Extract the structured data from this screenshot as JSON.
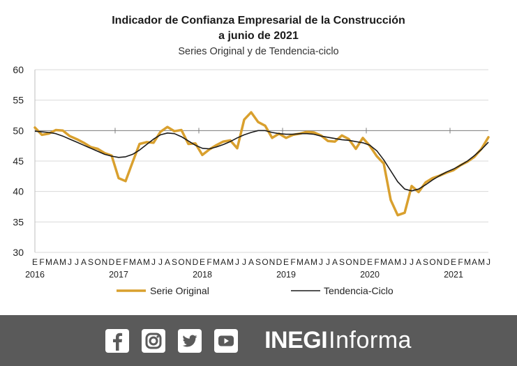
{
  "colors": {
    "original": "#d9a02e",
    "trend": "#1a1a1a",
    "grid": "#d9d9d9",
    "footer_bg": "#5a5a5a"
  },
  "chart_data": {
    "type": "line",
    "title_line1": "Indicador de Confianza Empresarial de la Construcción",
    "title_line2": "a junio de 2021",
    "subtitle": "Series Original y de Tendencia-ciclo",
    "ylim": [
      30,
      60
    ],
    "yticks": [
      "30",
      "35",
      "40",
      "45",
      "50",
      "55",
      "60"
    ],
    "reference_line": 50,
    "grid": "horizontal",
    "legend_position": "bottom",
    "month_letters": [
      "E",
      "F",
      "M",
      "A",
      "M",
      "J",
      "J",
      "A",
      "S",
      "O",
      "N",
      "D"
    ],
    "years": [
      "2016",
      "2017",
      "2018",
      "2019",
      "2020",
      "2021"
    ],
    "x": [
      "2016-01",
      "2016-02",
      "2016-03",
      "2016-04",
      "2016-05",
      "2016-06",
      "2016-07",
      "2016-08",
      "2016-09",
      "2016-10",
      "2016-11",
      "2016-12",
      "2017-01",
      "2017-02",
      "2017-03",
      "2017-04",
      "2017-05",
      "2017-06",
      "2017-07",
      "2017-08",
      "2017-09",
      "2017-10",
      "2017-11",
      "2017-12",
      "2018-01",
      "2018-02",
      "2018-03",
      "2018-04",
      "2018-05",
      "2018-06",
      "2018-07",
      "2018-08",
      "2018-09",
      "2018-10",
      "2018-11",
      "2018-12",
      "2019-01",
      "2019-02",
      "2019-03",
      "2019-04",
      "2019-05",
      "2019-06",
      "2019-07",
      "2019-08",
      "2019-09",
      "2019-10",
      "2019-11",
      "2019-12",
      "2020-01",
      "2020-02",
      "2020-03",
      "2020-04",
      "2020-05",
      "2020-06",
      "2020-07",
      "2020-08",
      "2020-09",
      "2020-10",
      "2020-11",
      "2020-12",
      "2021-01",
      "2021-02",
      "2021-03",
      "2021-04",
      "2021-05",
      "2021-06"
    ],
    "series": [
      {
        "name": "Serie Original",
        "values": [
          50.5,
          49.3,
          49.5,
          50.1,
          50.0,
          49.1,
          48.6,
          48.0,
          47.3,
          47.0,
          46.3,
          45.9,
          42.2,
          41.7,
          44.8,
          47.8,
          48.1,
          48.0,
          49.8,
          50.6,
          49.9,
          50.1,
          47.8,
          47.9,
          46.0,
          46.9,
          47.6,
          48.2,
          48.4,
          47.1,
          51.8,
          53.0,
          51.4,
          50.8,
          48.8,
          49.5,
          48.8,
          49.3,
          49.5,
          49.8,
          49.7,
          49.2,
          48.3,
          48.2,
          49.2,
          48.6,
          47.0,
          48.8,
          47.5,
          45.8,
          44.6,
          38.6,
          36.1,
          36.5,
          40.9,
          39.9,
          41.5,
          42.2,
          42.6,
          43.1,
          43.5,
          44.3,
          44.9,
          45.7,
          47.0,
          48.9
        ]
      },
      {
        "name": "Tendencia-Ciclo",
        "values": [
          49.9,
          49.8,
          49.7,
          49.5,
          49.1,
          48.6,
          48.1,
          47.6,
          47.1,
          46.6,
          46.1,
          45.8,
          45.6,
          45.7,
          46.1,
          46.8,
          47.7,
          48.6,
          49.3,
          49.6,
          49.5,
          49.0,
          48.3,
          47.6,
          47.1,
          47.0,
          47.3,
          47.7,
          48.2,
          48.8,
          49.3,
          49.7,
          50.0,
          50.0,
          49.7,
          49.5,
          49.4,
          49.4,
          49.5,
          49.5,
          49.4,
          49.1,
          48.9,
          48.7,
          48.5,
          48.4,
          48.2,
          48.0,
          47.6,
          46.7,
          45.2,
          43.4,
          41.6,
          40.4,
          40.1,
          40.4,
          41.1,
          41.9,
          42.6,
          43.2,
          43.7,
          44.3,
          45.0,
          45.9,
          46.9,
          48.1
        ]
      }
    ]
  },
  "footer": {
    "social_icons": [
      "facebook-icon",
      "instagram-icon",
      "twitter-icon",
      "youtube-icon"
    ],
    "brand_bold": "INEGI",
    "brand_light": "Informa"
  }
}
